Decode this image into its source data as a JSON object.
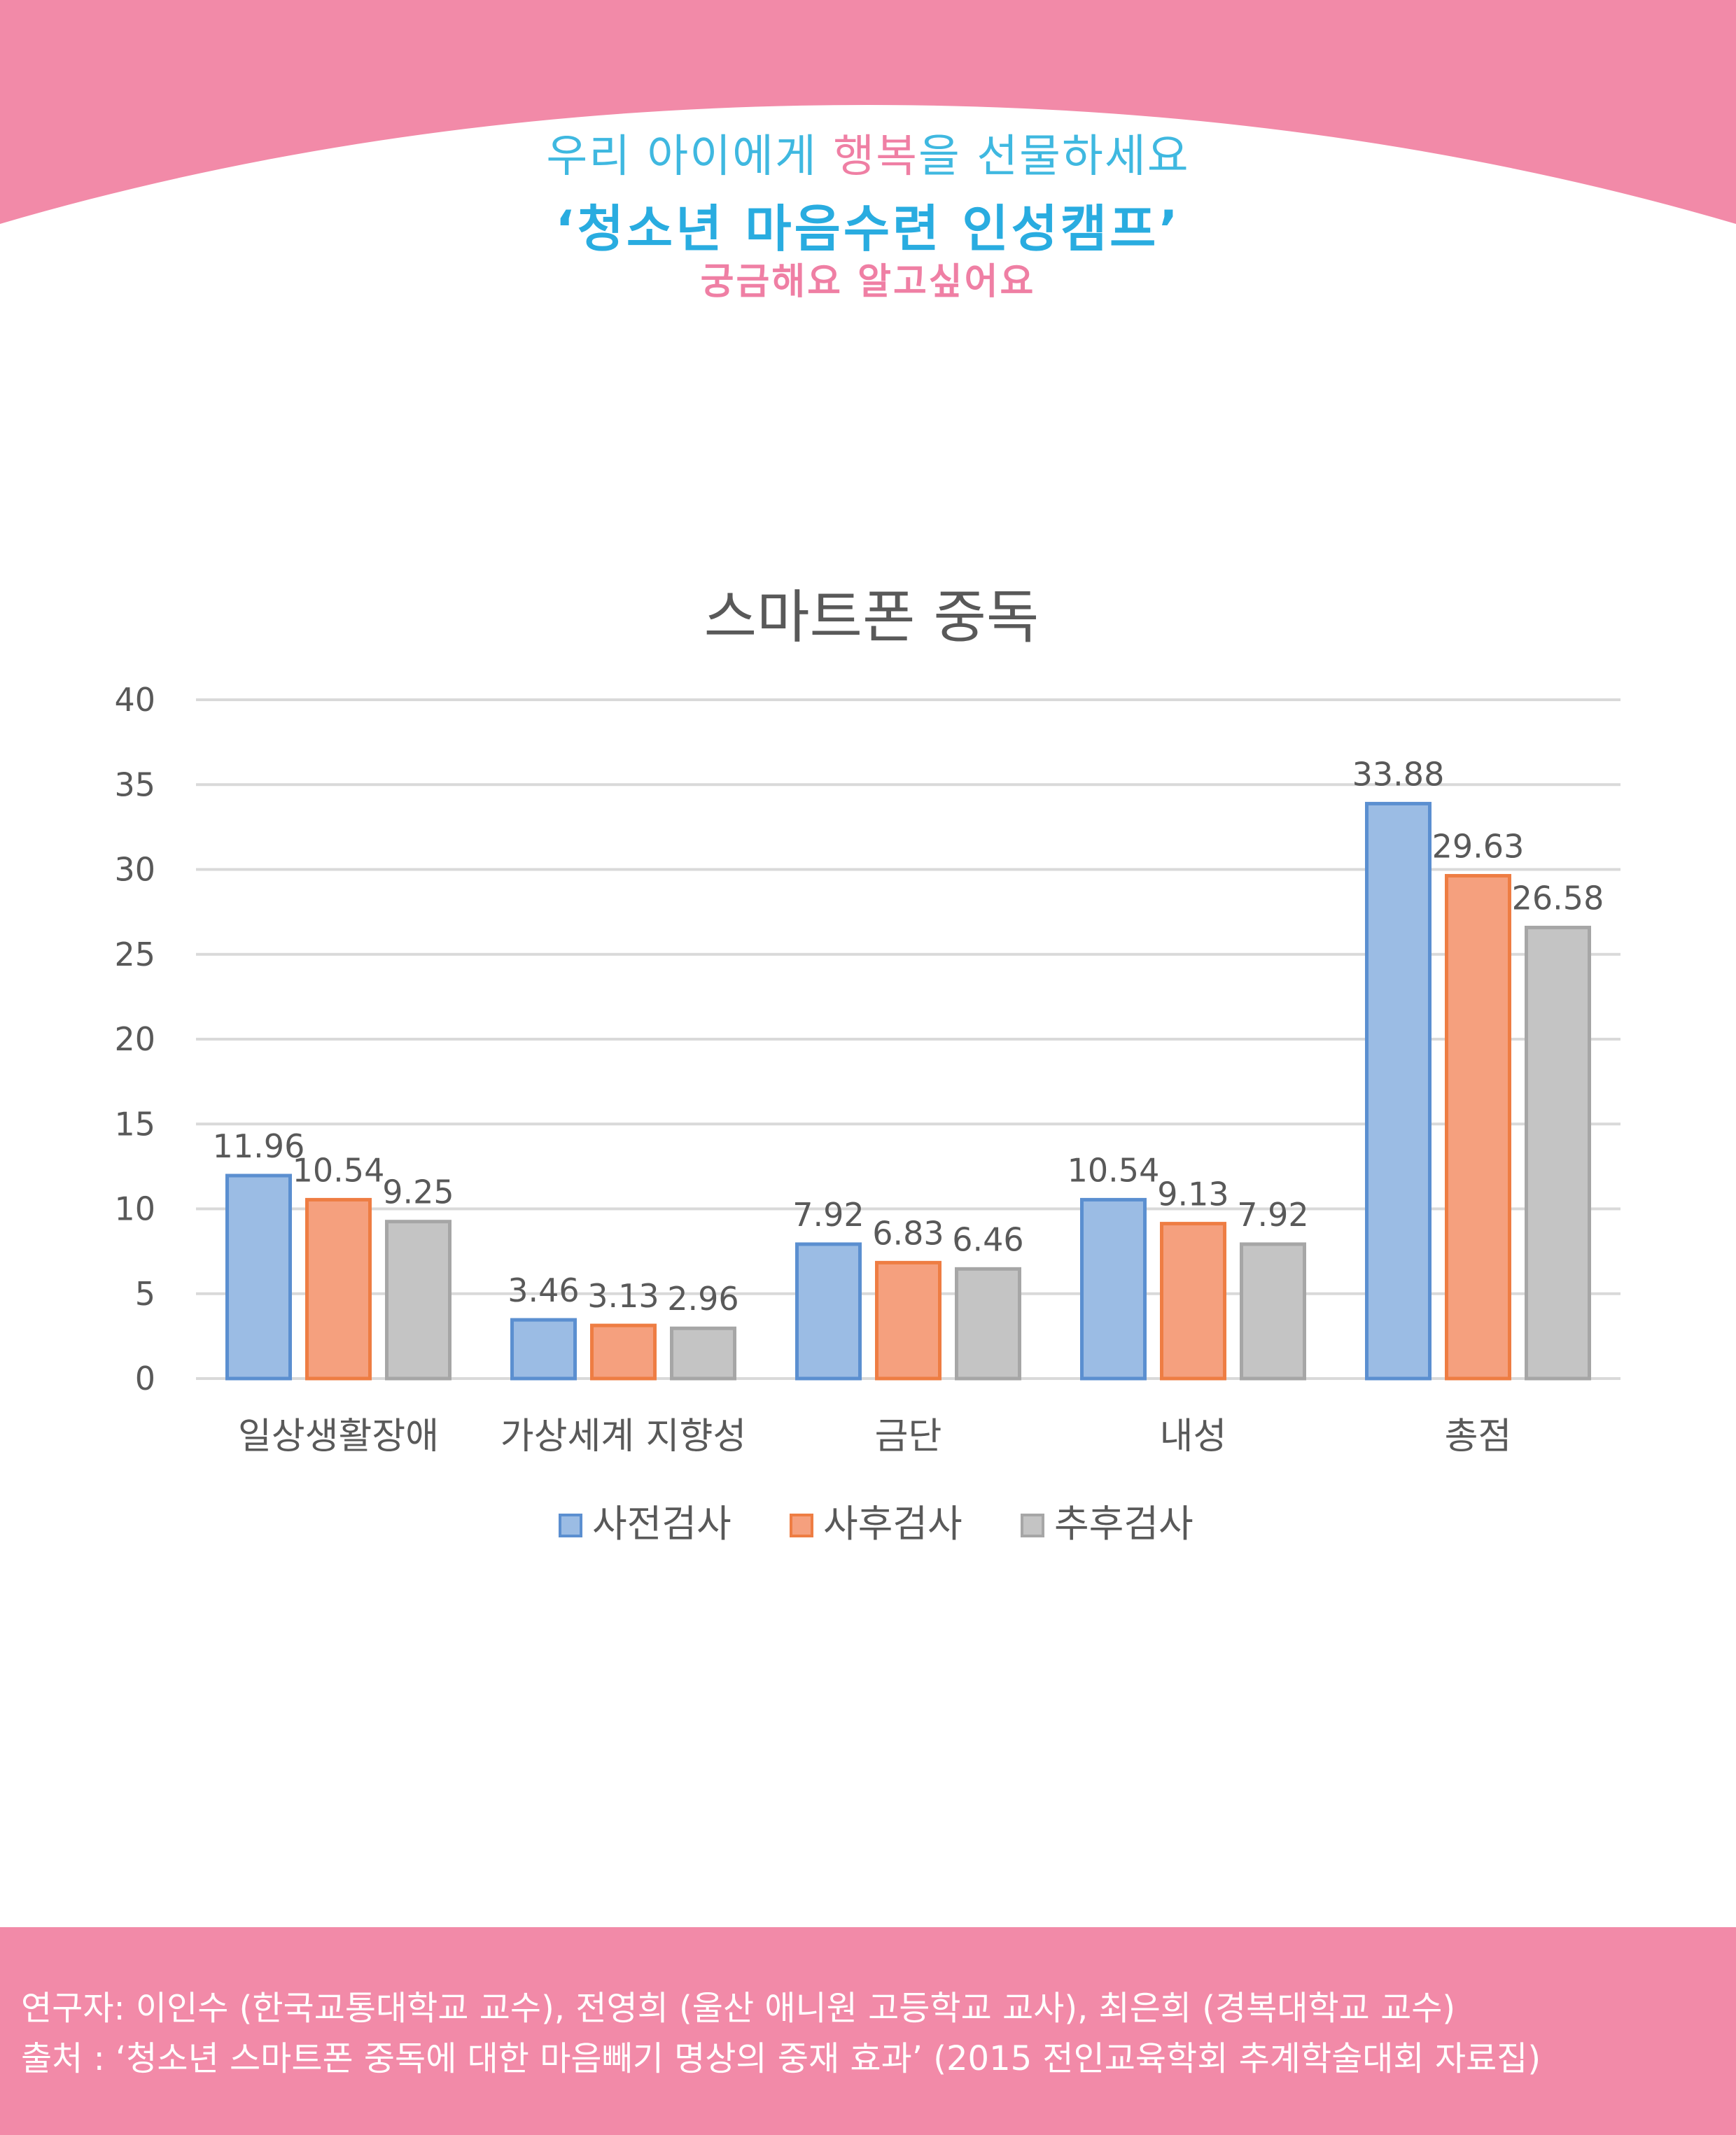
{
  "header": {
    "tagline_before": "우리 아이에게 ",
    "tagline_accent": "행복",
    "tagline_after": "을 선물하세요",
    "title": "‘청소년 마음수련 인성캠프’",
    "subtitle": "궁금해요 알고싶어요"
  },
  "colors": {
    "header_bg": "#f28aa8",
    "tagline": "#3fb8e0",
    "accent_pink": "#ef7fa4",
    "title": "#29ace0",
    "series_pre": "#9bbce4",
    "series_post": "#f5a07e",
    "series_follow": "#c4c4c4"
  },
  "chart_data": {
    "type": "bar",
    "title": "스마트폰 중독",
    "categories": [
      "일상생활장애",
      "가상세계 지향성",
      "금단",
      "내성",
      "총점"
    ],
    "series": [
      {
        "name": "사전검사",
        "values": [
          11.96,
          3.46,
          7.92,
          10.54,
          33.88
        ]
      },
      {
        "name": "사후검사",
        "values": [
          10.54,
          3.13,
          6.83,
          9.13,
          29.63
        ]
      },
      {
        "name": "추후검사",
        "values": [
          9.25,
          2.96,
          6.46,
          7.92,
          26.58
        ]
      }
    ],
    "value_labels": [
      [
        "11.96",
        "3.46",
        "7.92",
        "10.54",
        "33.88"
      ],
      [
        "10.54",
        "3.13",
        "6.83",
        "9.13",
        "29.63"
      ],
      [
        "9.25",
        "2.96",
        "6.46",
        "7.92",
        "26.58"
      ]
    ],
    "y_ticks": [
      "0",
      "5",
      "10",
      "15",
      "20",
      "25",
      "30",
      "35",
      "40"
    ],
    "ylim": [
      0,
      40
    ],
    "grid": true,
    "legend_position": "bottom"
  },
  "footer": {
    "researchers": "연구자: 이인수 (한국교통대학교 교수), 전영희 (울산 애니원 고등학교 교사), 최은희 (경복대학교 교수)",
    "source": "출처 : ‘청소년 스마트폰 중독에 대한 마음빼기 명상의 중재 효과’ (2015 전인교육학회 추계학술대회 자료집)"
  }
}
